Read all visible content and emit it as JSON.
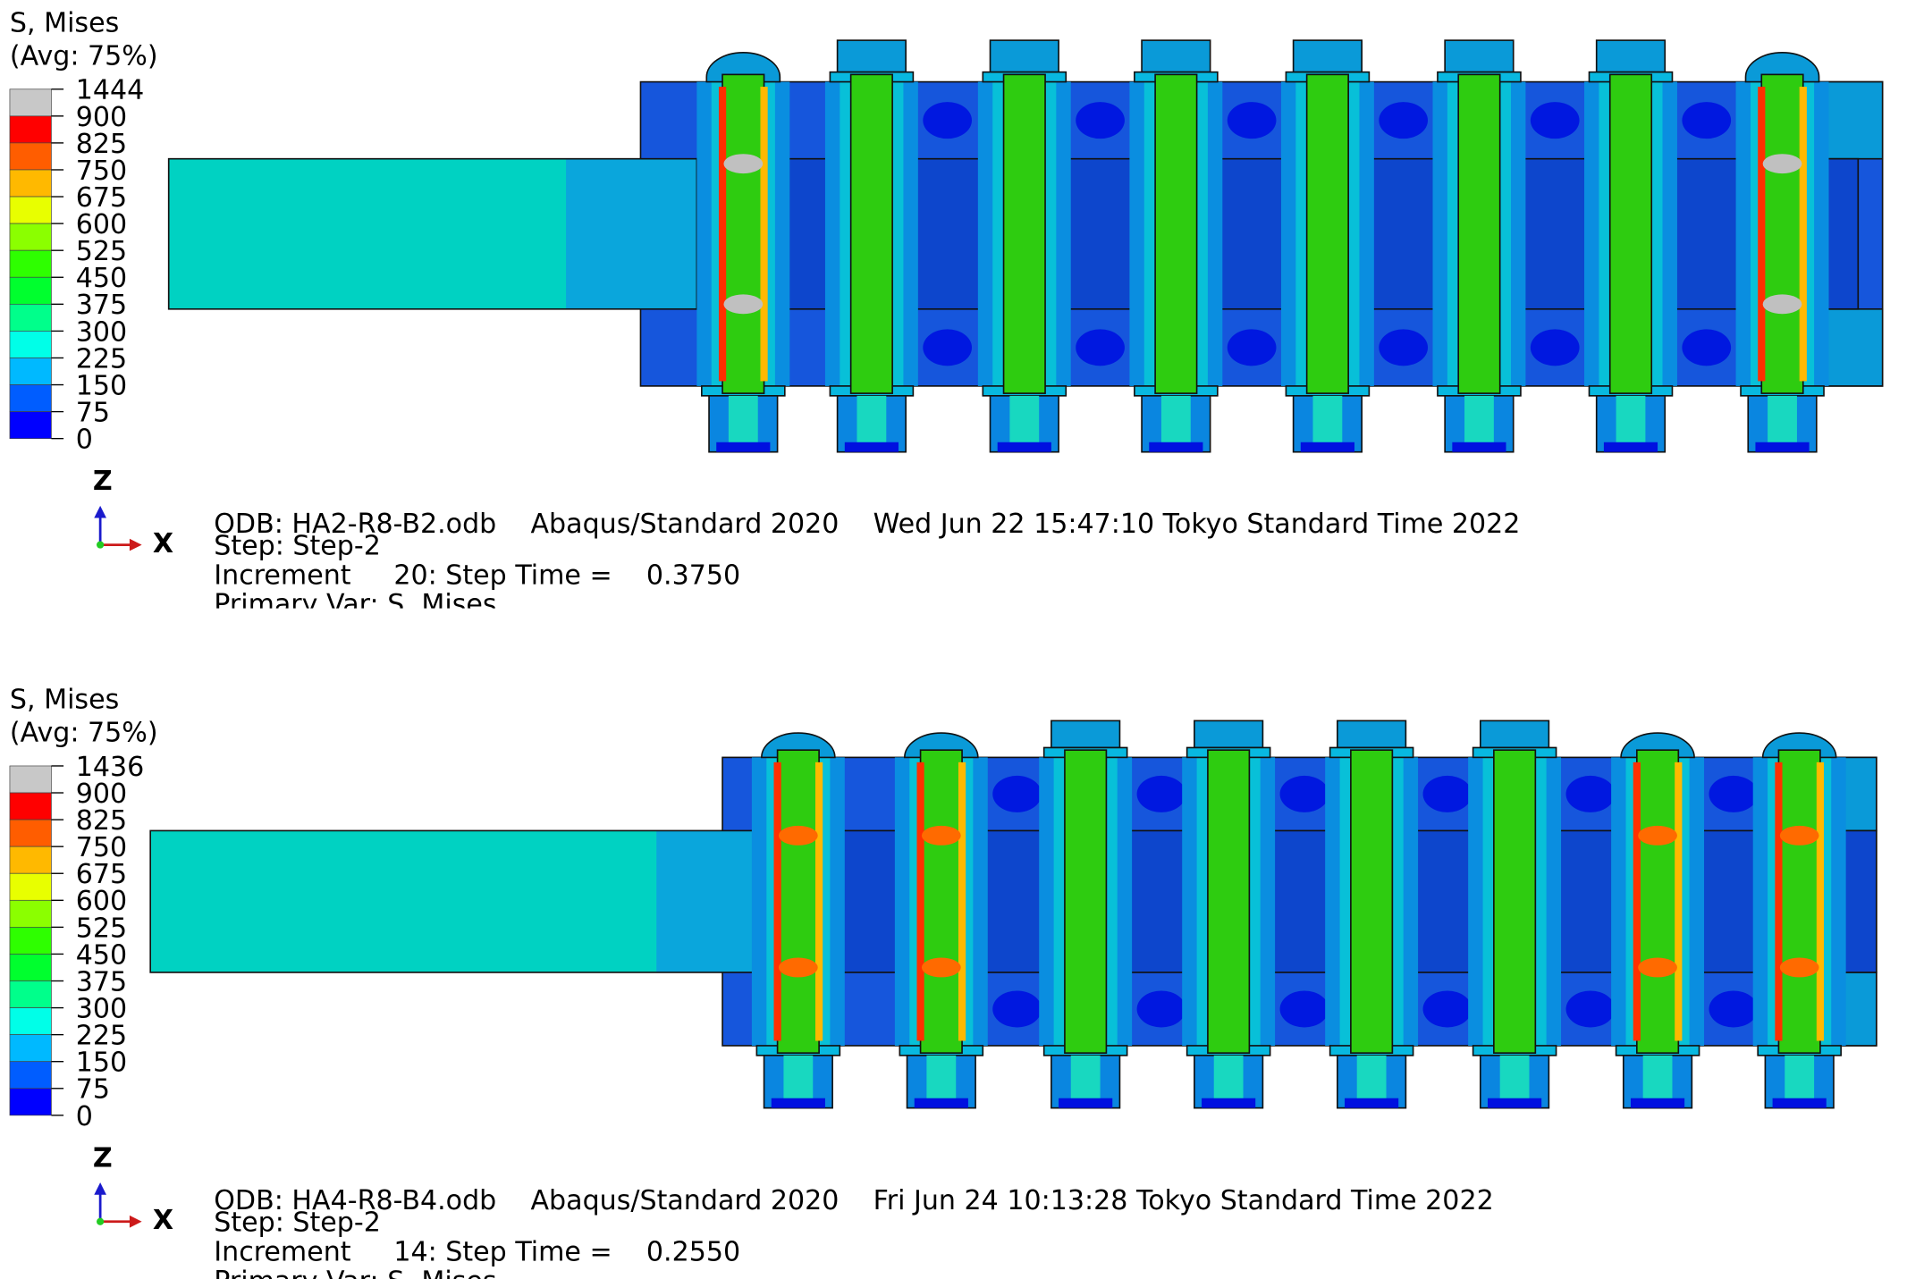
{
  "panels": [
    {
      "legend": {
        "title": "S, Mises",
        "subtitle": "(Avg: 75%)",
        "labels": [
          1444,
          900,
          825,
          750,
          675,
          600,
          525,
          450,
          375,
          300,
          225,
          150,
          75,
          0
        ],
        "colors": [
          "#c8c8c8",
          "#ff0000",
          "#ff5d00",
          "#ffb900",
          "#e8ff00",
          "#8bff00",
          "#2eff00",
          "#00ff2e",
          "#00ff8b",
          "#00ffe8",
          "#00b9ff",
          "#005dff",
          "#0000ff"
        ]
      },
      "triad": {
        "z": "Z",
        "x": "X"
      },
      "info": [
        "ODB: HA2-R8-B2.odb    Abaqus/Standard 2020    Wed Jun 22 15:47:10 Tokyo Standard Time 2022",
        "Step: Step-2",
        "Increment     20: Step Time =    0.3750",
        "Primary Var: S, Mises"
      ]
    },
    {
      "legend": {
        "title": "S, Mises",
        "subtitle": "(Avg: 75%)",
        "labels": [
          1436,
          900,
          825,
          750,
          675,
          600,
          525,
          450,
          375,
          300,
          225,
          150,
          75,
          0
        ],
        "colors": [
          "#c8c8c8",
          "#ff0000",
          "#ff5d00",
          "#ffb900",
          "#e8ff00",
          "#8bff00",
          "#2eff00",
          "#00ff2e",
          "#00ff8b",
          "#00ffe8",
          "#00b9ff",
          "#005dff",
          "#0000ff"
        ]
      },
      "triad": {
        "z": "Z",
        "x": "X"
      },
      "info": [
        "ODB: HA4-R8-B4.odb    Abaqus/Standard 2020    Fri Jun 24 10:13:28 Tokyo Standard Time 2022",
        "Step: Step-2",
        "Increment     14: Step Time =    0.2550",
        "Primary Var: S, Mises"
      ]
    }
  ]
}
